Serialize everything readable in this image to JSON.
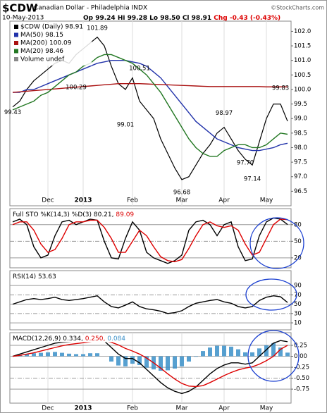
{
  "header": {
    "symbol": "$CDW",
    "name": "Canadian Dollar - Philadelphia INDX",
    "date": "10-May-2013",
    "quote": "Op 99.24 Hi 99.28 Lo 98.50 Cl 98.91",
    "change": "Chg -0.43 (-0.43%)",
    "credit": "©StockCharts.com"
  },
  "chart_data": [
    {
      "type": "line",
      "categories": [
        null,
        null,
        null,
        null,
        null,
        "Dec",
        null,
        null,
        null,
        null,
        "2013",
        null,
        null,
        null,
        null,
        null,
        null,
        "Feb",
        null,
        null,
        null,
        null,
        null,
        null,
        "Mar",
        null,
        null,
        null,
        null,
        null,
        "Apr",
        null,
        null,
        null,
        null,
        null,
        "May",
        null,
        null,
        null
      ],
      "series": [
        {
          "name": "$CDW (Daily) 98.91",
          "color": "#000000",
          "values": [
            99.4,
            99.6,
            100.0,
            100.3,
            100.5,
            100.7,
            100.9,
            101.0,
            100.9,
            101.2,
            101.4,
            101.6,
            101.8,
            101.5,
            100.8,
            100.2,
            100.0,
            100.4,
            99.6,
            99.3,
            99.0,
            98.3,
            97.8,
            97.3,
            96.9,
            97.0,
            97.4,
            97.8,
            98.1,
            98.5,
            98.7,
            98.3,
            97.9,
            97.6,
            97.4,
            98.2,
            99.0,
            99.5,
            99.5,
            98.91
          ]
        },
        {
          "name": "MA(50) 98.15",
          "color": "#2233aa",
          "values": [
            99.9,
            99.9,
            100.0,
            100.0,
            100.1,
            100.2,
            100.3,
            100.4,
            100.5,
            100.6,
            100.7,
            100.8,
            100.9,
            100.95,
            101.0,
            101.0,
            101.0,
            100.95,
            100.9,
            100.8,
            100.6,
            100.4,
            100.1,
            99.8,
            99.5,
            99.2,
            98.9,
            98.7,
            98.5,
            98.3,
            98.2,
            98.1,
            98.0,
            97.95,
            97.9,
            97.9,
            97.95,
            98.0,
            98.1,
            98.15
          ]
        },
        {
          "name": "MA(200) 100.09",
          "color": "#aa1111",
          "values": [
            99.9,
            99.92,
            99.94,
            99.96,
            99.98,
            100.0,
            100.02,
            100.04,
            100.06,
            100.08,
            100.1,
            100.12,
            100.14,
            100.16,
            100.18,
            100.2,
            100.2,
            100.2,
            100.2,
            100.19,
            100.18,
            100.17,
            100.16,
            100.15,
            100.14,
            100.13,
            100.12,
            100.11,
            100.1,
            100.1,
            100.1,
            100.1,
            100.1,
            100.1,
            100.1,
            100.1,
            100.09,
            100.09,
            100.09,
            100.09
          ]
        },
        {
          "name": "MA(20) 98.46",
          "color": "#227722",
          "values": [
            99.3,
            99.4,
            99.5,
            99.6,
            99.8,
            99.9,
            100.1,
            100.3,
            100.5,
            100.6,
            100.8,
            100.9,
            101.1,
            101.2,
            101.2,
            101.1,
            101.0,
            100.9,
            100.7,
            100.5,
            100.2,
            99.9,
            99.5,
            99.1,
            98.7,
            98.3,
            98.0,
            97.8,
            97.7,
            97.7,
            97.9,
            98.0,
            98.1,
            98.1,
            98.0,
            98.0,
            98.1,
            98.3,
            98.5,
            98.46
          ]
        }
      ],
      "legend_note": "Volume undef",
      "annotations": [
        "99.43",
        "100.29",
        "101.89",
        "99.01",
        "100.51",
        "96.68",
        "98.97",
        "97.70",
        "97.14",
        "99.83"
      ],
      "ylim": [
        96.0,
        102.35
      ],
      "yticks": [
        96.5,
        {
          "value": 97,
          "label": "97.0"
        },
        97.5,
        {
          "value": 98,
          "label": "98.0"
        },
        98.5,
        {
          "value": 99,
          "label": "99.0"
        },
        99.5,
        {
          "value": 100,
          "label": "100.0"
        },
        100.5,
        {
          "value": 101,
          "label": "101.0"
        },
        101.5,
        {
          "value": 102,
          "label": "102.0"
        }
      ],
      "grid": false
    },
    {
      "type": "line",
      "title": [
        "Full STO %K(14,3) %D(3) 80.21,",
        "89.09"
      ],
      "series": [
        {
          "color": "#000000",
          "values": [
            85,
            90,
            80,
            40,
            20,
            25,
            60,
            85,
            88,
            80,
            85,
            90,
            88,
            50,
            20,
            18,
            55,
            85,
            70,
            30,
            20,
            15,
            10,
            15,
            25,
            70,
            85,
            88,
            80,
            60,
            80,
            85,
            40,
            15,
            18,
            60,
            85,
            92,
            90,
            80.21
          ]
        },
        {
          "color": "#dd0000",
          "values": [
            80,
            85,
            85,
            70,
            45,
            30,
            35,
            55,
            80,
            85,
            85,
            88,
            88,
            75,
            55,
            30,
            30,
            50,
            70,
            60,
            40,
            22,
            15,
            13,
            17,
            37,
            60,
            80,
            85,
            78,
            75,
            78,
            70,
            45,
            25,
            30,
            55,
            80,
            90,
            89.09
          ]
        }
      ],
      "ylim": [
        2,
        109
      ],
      "yticks": [
        20,
        50,
        80
      ],
      "grid": true
    },
    {
      "type": "line",
      "title": [
        "RSI(14) 53.63"
      ],
      "series": [
        {
          "color": "#000000",
          "values": [
            50,
            55,
            60,
            62,
            60,
            62,
            65,
            60,
            58,
            60,
            62,
            65,
            68,
            55,
            45,
            42,
            48,
            55,
            45,
            40,
            38,
            35,
            30,
            32,
            36,
            45,
            52,
            55,
            58,
            60,
            55,
            52,
            45,
            42,
            45,
            58,
            65,
            68,
            66,
            53.63
          ]
        }
      ],
      "ylim": [
        -5,
        122
      ],
      "yticks": [
        10,
        30,
        50,
        70,
        90
      ],
      "grid": true
    },
    {
      "type": "line",
      "title": [
        "MACD(12,26,9) 0.334,",
        "0.250,",
        "0.084"
      ],
      "categories": [
        null,
        null,
        null,
        null,
        null,
        "Dec",
        null,
        null,
        null,
        null,
        "2013",
        null,
        null,
        null,
        null,
        null,
        null,
        "Feb",
        null,
        null,
        null,
        null,
        null,
        null,
        "Mar",
        null,
        null,
        null,
        null,
        null,
        "Apr",
        null,
        null,
        null,
        null,
        null,
        "May",
        null,
        null,
        null
      ],
      "series": [
        {
          "color": "#000000",
          "values": [
            0.0,
            0.05,
            0.1,
            0.15,
            0.2,
            0.25,
            0.3,
            0.32,
            0.33,
            0.34,
            0.36,
            0.4,
            0.42,
            0.35,
            0.2,
            0.05,
            -0.05,
            -0.05,
            -0.15,
            -0.3,
            -0.45,
            -0.6,
            -0.72,
            -0.8,
            -0.85,
            -0.8,
            -0.7,
            -0.55,
            -0.4,
            -0.28,
            -0.2,
            -0.15,
            -0.15,
            -0.18,
            -0.15,
            0.0,
            0.15,
            0.3,
            0.36,
            0.334
          ]
        },
        {
          "color": "#dd0000",
          "values": [
            0.0,
            0.02,
            0.05,
            0.08,
            0.12,
            0.16,
            0.2,
            0.24,
            0.27,
            0.29,
            0.31,
            0.33,
            0.35,
            0.35,
            0.32,
            0.26,
            0.18,
            0.12,
            0.05,
            -0.04,
            -0.15,
            -0.27,
            -0.4,
            -0.52,
            -0.62,
            -0.68,
            -0.69,
            -0.67,
            -0.6,
            -0.52,
            -0.44,
            -0.37,
            -0.31,
            -0.27,
            -0.24,
            -0.18,
            -0.1,
            0.0,
            0.16,
            0.25
          ]
        },
        {
          "type": "bar",
          "color": "#3a8fc8",
          "values": [
            0,
            0.03,
            0.05,
            0.07,
            0.08,
            0.09,
            0.1,
            0.08,
            0.06,
            0.05,
            0.05,
            0.07,
            0.07,
            0,
            -0.12,
            -0.21,
            -0.23,
            -0.17,
            -0.2,
            -0.26,
            -0.3,
            -0.33,
            -0.32,
            -0.28,
            -0.23,
            -0.12,
            -0.01,
            0.12,
            0.2,
            0.24,
            0.24,
            0.22,
            0.16,
            0.09,
            0.09,
            0.18,
            0.25,
            0.3,
            0.2,
            0.084
          ]
        }
      ],
      "ylim": [
        -1.07,
        0.54
      ],
      "yticks": [
        {
          "value": 0.25,
          "label": "0.25"
        },
        {
          "value": 0,
          "label": "0.00"
        },
        {
          "value": -0.25,
          "label": "-0.25"
        },
        {
          "value": -0.5,
          "label": "-0.50"
        },
        {
          "value": -0.75,
          "label": "-0.75"
        }
      ],
      "grid": true
    }
  ]
}
